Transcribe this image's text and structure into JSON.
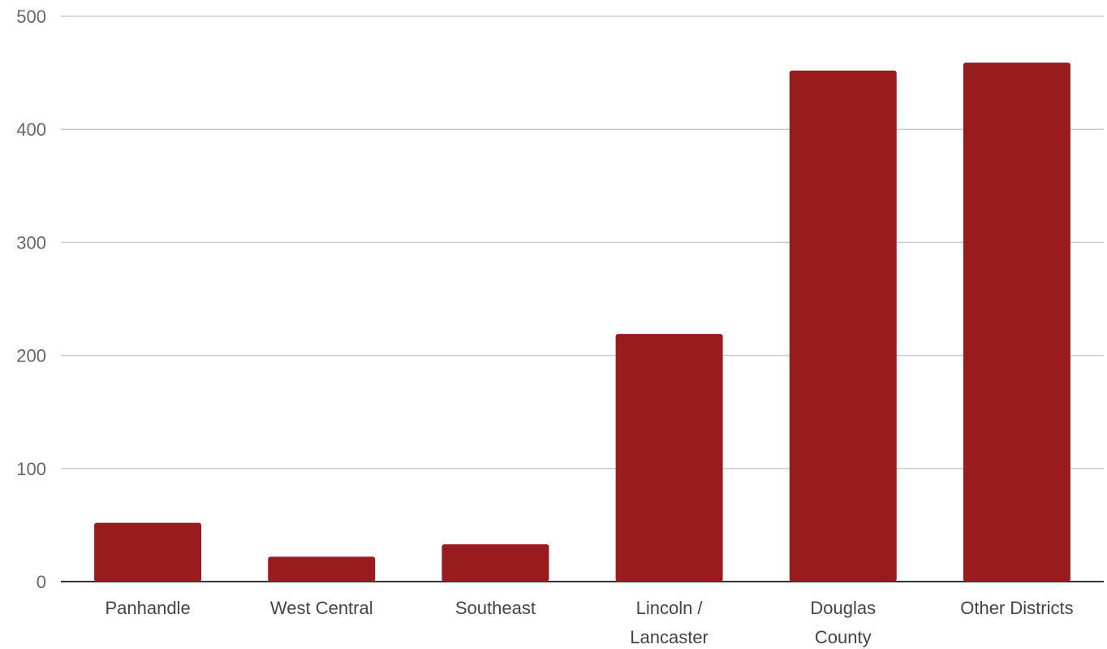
{
  "chart_data": {
    "type": "bar",
    "title": "",
    "xlabel": "",
    "ylabel": "",
    "categories": [
      [
        "Panhandle"
      ],
      [
        "West Central"
      ],
      [
        "Southeast"
      ],
      [
        "Lincoln /",
        "Lancaster"
      ],
      [
        "Douglas",
        "County"
      ],
      [
        "Other Districts"
      ]
    ],
    "values": [
      52,
      22,
      33,
      219,
      452,
      459
    ],
    "ylim": [
      0,
      500
    ],
    "yticks": [
      "0",
      "100",
      "200",
      "300",
      "400",
      "500"
    ],
    "grid": true,
    "legend": "none",
    "bar_color": "#981b1e"
  }
}
